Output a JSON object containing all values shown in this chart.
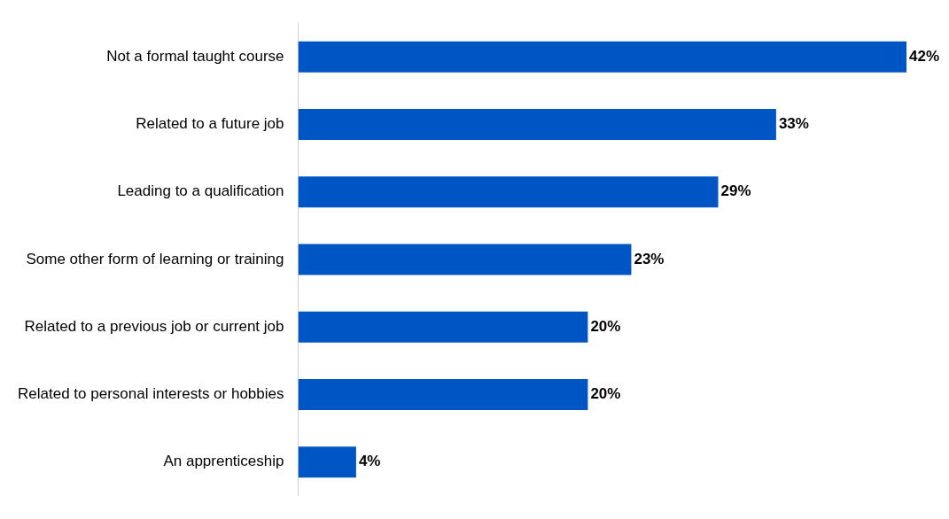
{
  "chart_data": {
    "type": "bar",
    "orientation": "horizontal",
    "categories": [
      "Not a formal taught course",
      "Related to a future job",
      "Leading to a qualification",
      "Some other form of learning or training",
      "Related to a previous job or current job",
      "Related to personal interests or hobbies",
      "An apprenticeship"
    ],
    "values": [
      42,
      33,
      29,
      23,
      20,
      20,
      4
    ],
    "value_labels": [
      "42%",
      "33%",
      "29%",
      "23%",
      "20%",
      "20%",
      "4%"
    ],
    "color": "#0055c4"
  }
}
